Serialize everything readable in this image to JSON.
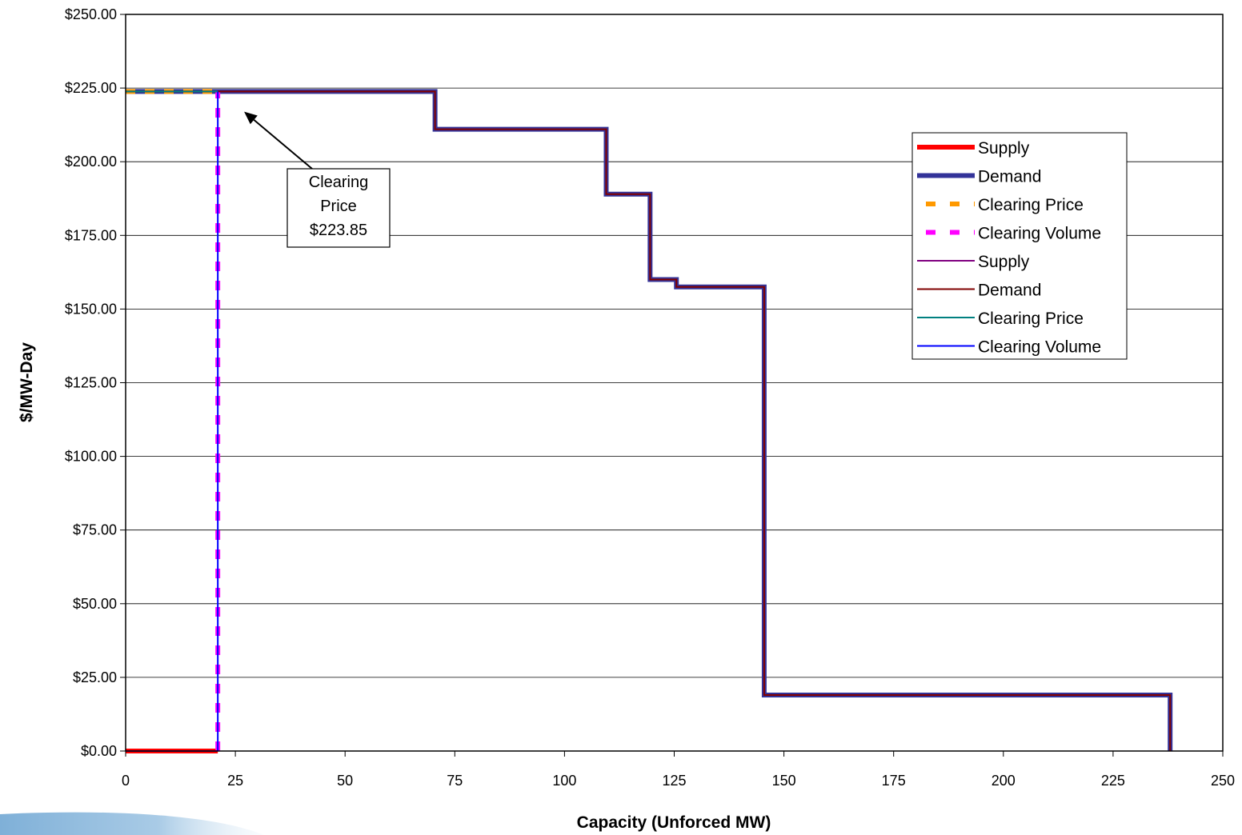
{
  "chart_data": {
    "type": "line",
    "title": "",
    "xlabel": "Capacity (Unforced MW)",
    "ylabel": "$/MW-Day",
    "xlim": [
      0,
      250
    ],
    "ylim": [
      0,
      250
    ],
    "xticks": [
      0,
      25,
      50,
      75,
      100,
      125,
      150,
      175,
      200,
      225,
      250
    ],
    "xtick_labels": [
      "0",
      "25",
      "50",
      "75",
      "100",
      "125",
      "150",
      "175",
      "200",
      "225",
      "250"
    ],
    "yticks": [
      0,
      25,
      50,
      75,
      100,
      125,
      150,
      175,
      200,
      225,
      250
    ],
    "ytick_labels": [
      "$0.00",
      "$25.00",
      "$50.00",
      "$75.00",
      "$100.00",
      "$125.00",
      "$150.00",
      "$175.00",
      "$200.00",
      "$225.00",
      "$250.00"
    ],
    "grid": "horizontal",
    "legend_position": "right",
    "series": [
      {
        "name": "Supply",
        "color": "#ff0000",
        "style": "solid-thick",
        "x": [
          0,
          21
        ],
        "y": [
          0,
          0
        ]
      },
      {
        "name": "Demand",
        "color": "#333399",
        "style": "solid-thick",
        "x": [
          0,
          70.5,
          70.5,
          109.5,
          109.5,
          119.5,
          119.5,
          125.5,
          125.5,
          145.5,
          145.5,
          238,
          238
        ],
        "y": [
          223.85,
          223.85,
          211,
          211,
          189,
          189,
          160,
          160,
          157.5,
          157.5,
          19,
          19,
          0
        ]
      },
      {
        "name": "Clearing Price",
        "color": "#ff9900",
        "style": "dashed-thick",
        "x": [
          0,
          21
        ],
        "y": [
          223.85,
          223.85
        ]
      },
      {
        "name": "Clearing Volume",
        "color": "#ff00ff",
        "style": "dashed-thick",
        "x": [
          21,
          21
        ],
        "y": [
          0,
          223.85
        ]
      },
      {
        "name": "Supply",
        "color": "#800080",
        "style": "solid-thin",
        "x": [
          0,
          21
        ],
        "y": [
          0,
          0
        ]
      },
      {
        "name": "Demand",
        "color": "#800000",
        "style": "solid-thin",
        "x": [
          0,
          70.5,
          70.5,
          109.5,
          109.5,
          119.5,
          119.5,
          125.5,
          125.5,
          145.5,
          145.5,
          238,
          238
        ],
        "y": [
          223.85,
          223.85,
          211,
          211,
          189,
          189,
          160,
          160,
          157.5,
          157.5,
          19,
          19,
          0
        ]
      },
      {
        "name": "Clearing Price",
        "color": "#008080",
        "style": "solid-thin",
        "x": [
          0,
          21
        ],
        "y": [
          223.85,
          223.85
        ]
      },
      {
        "name": "Clearing Volume",
        "color": "#0000ff",
        "style": "solid-thin",
        "x": [
          21,
          21
        ],
        "y": [
          0,
          223.85
        ]
      }
    ],
    "annotations": [
      {
        "lines": [
          "Clearing",
          "Price",
          "$223.85"
        ],
        "points_to": {
          "x": 27,
          "y": 217
        }
      }
    ]
  }
}
